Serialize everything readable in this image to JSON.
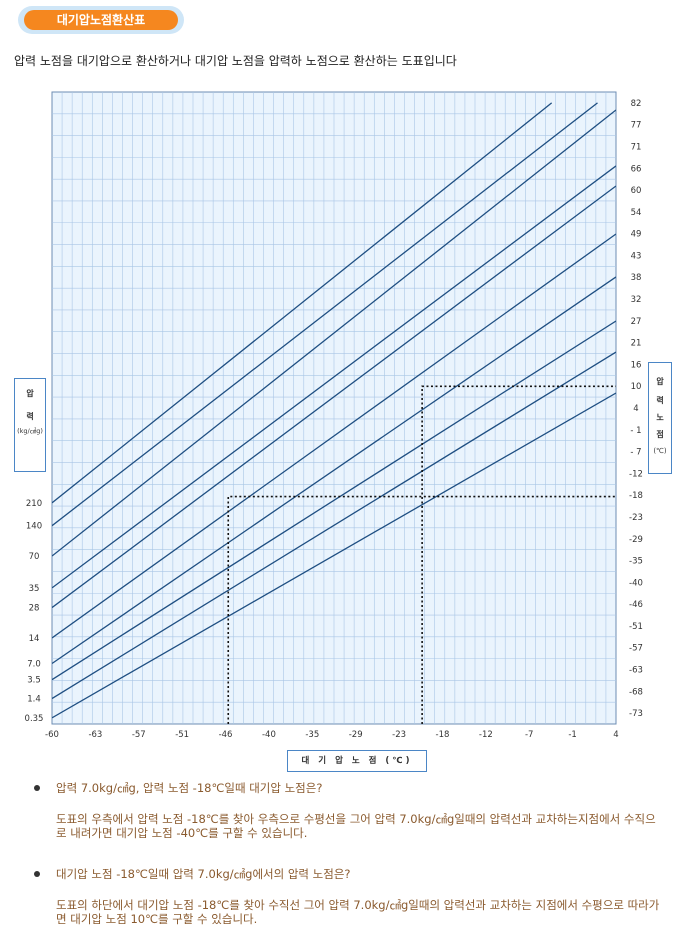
{
  "header": {
    "title": "대기압노점환산표"
  },
  "subtitle": "압력 노점을 대기압으로 환산하거나 대기압 노점을 압력하 노점으로 환산하는 도표입니다",
  "chart_data": {
    "type": "line",
    "title": "",
    "xlabel": "대 기 압 노 점 (℃)",
    "ylabel": [
      "압",
      "력",
      "(kg/㎠g)"
    ],
    "right_label": [
      "압",
      "력",
      "노",
      "점",
      "(℃)"
    ],
    "x_ticks": [
      "-60",
      "-63",
      "-57",
      "-51",
      "-46",
      "-40",
      "-35",
      "-29",
      "-23",
      "-18",
      "-12",
      "-7",
      "-1",
      "4"
    ],
    "x_range": [
      -60,
      4
    ],
    "right_ticks": [
      "82",
      "77",
      "71",
      "66",
      "60",
      "54",
      "49",
      "43",
      "38",
      "32",
      "27",
      "21",
      "16",
      "10",
      "4",
      "- 1",
      "- 7",
      "-12",
      "-18",
      "-23",
      "-29",
      "-35",
      "-40",
      "-46",
      "-51",
      "-57",
      "-63",
      "-68",
      "-73"
    ],
    "right_range": [
      82,
      -73
    ],
    "pressure_ticks": [
      "210",
      "140",
      "70",
      "35",
      "28",
      "14",
      "7.0",
      "3.5",
      "1.4",
      "0.35"
    ],
    "grid": true,
    "series": [
      {
        "values": [
          [
            -60,
            -19.6
          ],
          [
            -3.3,
            82
          ]
        ]
      },
      {
        "values": [
          [
            -60,
            -25.4
          ],
          [
            1.9,
            82
          ]
        ]
      },
      {
        "values": [
          [
            -60,
            -33.1
          ],
          [
            4,
            80.2
          ]
        ]
      },
      {
        "values": [
          [
            -60,
            -41.2
          ],
          [
            4,
            66
          ]
        ]
      },
      {
        "values": [
          [
            -60,
            -46.2
          ],
          [
            4,
            60.9
          ]
        ]
      },
      {
        "values": [
          [
            -60,
            -53.9
          ],
          [
            4,
            48.7
          ]
        ]
      },
      {
        "values": [
          [
            -60,
            -60.4
          ],
          [
            4,
            37.8
          ]
        ]
      },
      {
        "values": [
          [
            -60,
            -64.5
          ],
          [
            4,
            26.6
          ]
        ]
      },
      {
        "values": [
          [
            -60,
            -69.3
          ],
          [
            4,
            18.7
          ]
        ]
      },
      {
        "values": [
          [
            -60,
            -74.2
          ],
          [
            4,
            8.3
          ]
        ]
      }
    ],
    "annotations": [
      {
        "type": "dotted",
        "points": [
          [
            -40,
            -93
          ],
          [
            -40,
            -18
          ],
          [
            4,
            -18
          ]
        ]
      },
      {
        "type": "dotted",
        "points": [
          [
            -18,
            -93
          ],
          [
            -18,
            10
          ],
          [
            4,
            10
          ]
        ]
      }
    ]
  },
  "qa": [
    {
      "question": "압력 7.0kg/㎠g, 압력 노점 -18℃일때 대기압 노점은?",
      "answer": "도표의 우측에서 압력 노점 -18℃를 찾아 우측으로 수평선을 그어 압력 7.0kg/㎠g일때의 압력선과 교차하는지점에서 수직으로 내려가면 대기압 노점 -40℃를 구할 수 있습니다."
    },
    {
      "question": "대기압 노점 -18℃일때 압력 7.0kg/㎠g에서의 압력 노점은?",
      "answer": "도표의 하단에서 대기압 노점 -18℃를 찾아 수직선 그어 압력 7.0kg/㎠g일때의 압력선과 교차하는 지점에서 수평으로 따라가면 대기압 노점 10℃를 구할 수 있습니다."
    }
  ],
  "colors": {
    "accent": "#f5871f",
    "grid": "#a9c6e6",
    "plot_bg": "#eaf4fd",
    "line": "#1f4f82"
  }
}
